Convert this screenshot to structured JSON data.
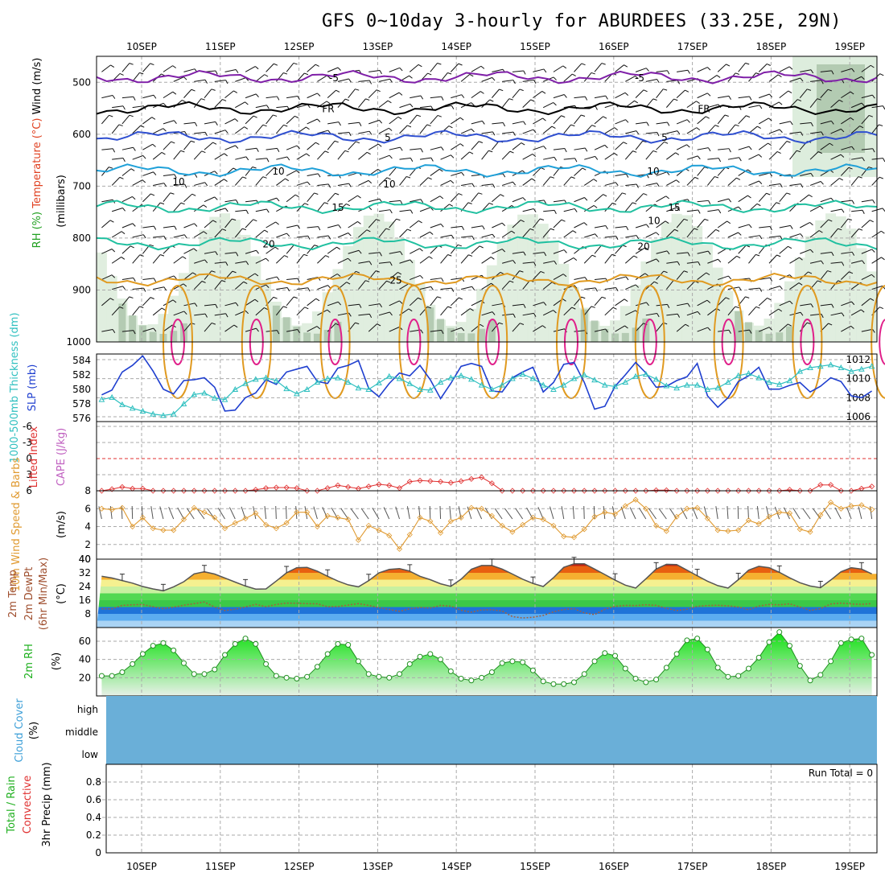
{
  "header": {
    "title": "GFS 0~10day 3-hourly for ABURDEES (33.25E, 29N)"
  },
  "colors": {
    "rh_fill": "#d5e8d4",
    "temp_purple": "#7f1fa8",
    "temp_blue": "#2f4fd0",
    "temp_cyan": "#1fa0d8",
    "temp_teal": "#20c0a0",
    "temp_orange": "#e09a20",
    "temp_magenta": "#e0208a",
    "slp": "#1f3fcf",
    "thickness": "#30c0c0",
    "lifted": "#e03030",
    "cape": "#c060c0",
    "wind10": "#e09a30",
    "temp2m": "#e86010",
    "rh2m": "#20d020",
    "cloud": "#6aafd8",
    "precip_total": "#20c020",
    "precip_conv": "#e03030"
  },
  "chart_data": [
    {
      "type": "line",
      "name": "upper",
      "ylabel_parts": [
        "RH (%)",
        "Temperature (°C)",
        "Wind (m/s)"
      ],
      "ylabel2": "(millibars)",
      "x": [
        "10SEP",
        "11SEP",
        "12SEP",
        "13SEP",
        "14SEP",
        "15SEP",
        "16SEP",
        "17SEP",
        "18SEP",
        "19SEP"
      ],
      "y_ticks": [
        1000,
        900,
        800,
        700,
        600,
        500
      ],
      "ylim": [
        1000,
        450
      ],
      "contour_labels": [
        "-5",
        "-5",
        "FR",
        "FR",
        "5",
        "5",
        "10",
        "10",
        "10",
        "10",
        "15",
        "15",
        "20",
        "20",
        "25",
        "10"
      ],
      "isotherms": [
        {
          "label": "-5",
          "level_mb": 490
        },
        {
          "label": "FR",
          "level_mb": 550
        },
        {
          "label": "5",
          "level_mb": 605
        },
        {
          "label": "10",
          "level_mb": 670
        },
        {
          "label": "15",
          "level_mb": 740
        },
        {
          "label": "20",
          "level_mb": 810
        },
        {
          "label": "25",
          "level_mb": 880
        }
      ]
    },
    {
      "type": "line",
      "name": "slp_thickness",
      "ylabel_left": "1000-500mb Thickness (dm)",
      "ylabel_right": "SLP (mb)",
      "y_ticks_left": [
        576,
        578,
        580,
        582,
        584
      ],
      "y_ticks_right": [
        1006,
        1008,
        1010,
        1012
      ],
      "slp": [
        1008.3,
        1008.8,
        1010.7,
        1011.4,
        1012.4,
        1010.8,
        1008.9,
        1008.4,
        1009.8,
        1009.9,
        1010.1,
        1009.1,
        1006.6,
        1006.7,
        1008.0,
        1008.5,
        1009.9,
        1009.4,
        1010.7,
        1011.0,
        1011.3,
        1009.7,
        1009.5,
        1011.1,
        1011.4,
        1011.9,
        1009.0,
        1008.1,
        1009.5,
        1010.6,
        1010.3,
        1011.4,
        1009.9,
        1007.9,
        1009.5,
        1011.3,
        1011.6,
        1011.3,
        1008.7,
        1008.6,
        1010.1,
        1010.7,
        1011.2,
        1008.6,
        1009.6,
        1011.5,
        1011.7,
        1009.6,
        1006.8,
        1007.1,
        1009.2,
        1010.4,
        1011.7,
        1010.6,
        1009.1,
        1009.2,
        1009.8,
        1010.2,
        1011.6,
        1008.2,
        1007.0,
        1008.0,
        1009.7,
        1010.3,
        1011.2,
        1008.9,
        1008.9,
        1009.3,
        1009.6,
        1008.6,
        1009.2,
        1010.1,
        1009.7,
        1008.2,
        1008.0,
        1008.7
      ],
      "thickness": [
        578.6,
        578.9,
        577.9,
        577.4,
        577.0,
        576.6,
        576.4,
        576.6,
        578.0,
        579.3,
        579.5,
        578.8,
        578.6,
        580.0,
        580.8,
        581.4,
        581.6,
        581.2,
        580.1,
        579.4,
        580.0,
        581.0,
        581.5,
        581.6,
        581.0,
        580.2,
        580.0,
        580.9,
        581.8,
        581.5,
        580.8,
        580.0,
        579.9,
        581.0,
        581.6,
        581.9,
        581.4,
        580.6,
        580.0,
        580.6,
        581.5,
        582.1,
        581.5,
        580.6,
        580.0,
        580.6,
        581.5,
        582.0,
        581.3,
        580.6,
        580.4,
        581.0,
        581.8,
        582.1,
        581.4,
        580.5,
        580.2,
        580.6,
        580.6,
        580.0,
        580.2,
        581.0,
        581.9,
        582.2,
        581.6,
        581.0,
        580.7,
        581.2,
        582.5,
        583.0,
        583.2,
        583.4,
        583.0,
        582.5,
        582.8,
        583.2
      ]
    },
    {
      "type": "line",
      "name": "stability",
      "ylabel_left": "Lifted Index",
      "ylabel_right": "CAPE (J/kg)",
      "y_ticks": [
        -6,
        -3,
        0,
        3,
        6
      ],
      "right_tick": "8",
      "lifted_index": [
        6.0,
        5.7,
        5.3,
        5.6,
        5.6,
        6.0,
        6.0,
        6.0,
        6.0,
        6.0,
        6.0,
        6.0,
        6.0,
        6.0,
        6.0,
        5.8,
        5.5,
        5.4,
        5.4,
        5.5,
        6.0,
        6.0,
        5.5,
        5.0,
        5.3,
        5.6,
        5.2,
        4.8,
        5.0,
        5.5,
        4.3,
        4.1,
        4.2,
        4.3,
        4.5,
        4.2,
        3.8,
        3.5,
        4.6,
        6.0,
        6.0,
        6.0,
        6.0,
        6.0,
        6.0,
        6.0,
        6.0,
        6.0,
        6.0,
        6.0,
        6.0,
        6.0,
        6.0,
        6.0,
        5.9,
        5.9,
        6.0,
        6.0,
        6.0,
        6.0,
        6.0,
        6.0,
        6.0,
        6.0,
        6.0,
        6.0,
        6.0,
        5.8,
        6.0,
        6.0,
        4.9,
        4.9,
        6.0,
        6.0,
        5.6,
        5.2
      ]
    },
    {
      "type": "line",
      "name": "wind10m",
      "ylabel_left": "10m Wind Speed & Barbs",
      "ylabel2": "(m/s)",
      "y_ticks": [
        2,
        4,
        6
      ],
      "speed": [
        6.0,
        5.9,
        6.1,
        4.0,
        5.0,
        3.8,
        3.6,
        3.6,
        4.8,
        6.1,
        5.6,
        5.0,
        3.8,
        4.4,
        4.9,
        5.5,
        4.2,
        3.8,
        4.4,
        5.6,
        5.6,
        4.0,
        5.2,
        5.0,
        4.8,
        2.5,
        4.1,
        3.6,
        3.0,
        1.5,
        3.1,
        5.0,
        4.6,
        3.3,
        4.6,
        5.0,
        6.1,
        6.0,
        5.2,
        4.1,
        3.4,
        4.2,
        5.0,
        4.8,
        4.1,
        2.9,
        2.8,
        3.7,
        5.1,
        5.6,
        5.4,
        6.3,
        7.0,
        6.0,
        4.1,
        3.5,
        5.1,
        6.0,
        6.1,
        4.9,
        3.6,
        3.5,
        3.6,
        4.7,
        4.3,
        5.1,
        5.6,
        5.5,
        3.7,
        3.4,
        5.3,
        6.7,
        6.0,
        6.3,
        6.4,
        5.9
      ]
    },
    {
      "type": "area",
      "name": "temp2m",
      "ylabel_left": "2m Temp 2m DewPt (6hr Min/Max)",
      "ylabel2": "(°C)",
      "y_ticks": [
        8,
        16,
        24,
        32,
        40
      ],
      "temp": [
        30.0,
        29.0,
        27.5,
        26.0,
        24.0,
        22.6,
        21.5,
        23.8,
        26.8,
        31.4,
        32.6,
        31.3,
        29.0,
        26.6,
        24.3,
        22.5,
        22.6,
        27.2,
        32.0,
        35.0,
        35.2,
        33.0,
        30.0,
        27.2,
        25.0,
        23.8,
        27.4,
        32.0,
        34.0,
        34.5,
        33.0,
        30.0,
        28.0,
        25.6,
        24.1,
        28.3,
        34.1,
        36.3,
        36.3,
        34.2,
        31.3,
        28.3,
        25.8,
        24.0,
        29.2,
        35.2,
        37.3,
        37.3,
        34.2,
        31.0,
        27.7,
        24.8,
        23.1,
        28.5,
        34.2,
        37.0,
        36.8,
        33.6,
        30.3,
        27.1,
        24.5,
        23.1,
        28.0,
        33.6,
        35.8,
        35.0,
        32.3,
        29.1,
        26.2,
        24.3,
        23.3,
        27.8,
        32.6,
        35.0,
        34.2,
        31.4
      ],
      "dewpt": [
        10.9,
        10.9,
        13.0,
        13.3,
        13.5,
        12.2,
        11.0,
        11.9,
        13.1,
        14.0,
        14.9,
        12.0,
        10.0,
        10.7,
        12.1,
        13.6,
        12.2,
        13.5,
        14.3,
        14.2,
        14.0,
        13.9,
        12.2,
        12.3,
        13.2,
        14.0,
        13.0,
        11.6,
        10.6,
        9.5,
        11.0,
        11.7,
        11.4,
        13.0,
        12.5,
        10.1,
        9.0,
        10.3,
        10.4,
        9.7,
        6.4,
        5.6,
        6.0,
        7.1,
        9.2,
        10.6,
        11.0,
        8.6,
        7.6,
        10.7,
        12.4,
        13.0,
        12.9,
        13.3,
        13.0,
        11.2,
        10.0,
        10.7,
        12.4,
        12.9,
        13.1,
        12.7,
        12.0,
        10.4,
        12.6,
        13.5,
        13.3,
        13.9,
        12.0,
        10.0,
        11.1,
        13.8,
        14.3,
        13.8,
        13.6,
        14.0
      ]
    },
    {
      "type": "area",
      "name": "rh2m",
      "ylabel_left": "2m RH",
      "ylabel2": "(%)",
      "y_ticks": [
        20,
        40,
        60
      ],
      "rh": [
        22,
        22,
        26,
        35,
        46,
        55,
        58,
        50,
        36,
        24,
        24,
        29,
        45,
        57,
        63,
        57,
        35,
        22,
        20,
        19,
        21,
        32,
        46,
        57,
        56,
        38,
        24,
        21,
        20,
        24,
        35,
        43,
        46,
        40,
        27,
        19,
        17,
        20,
        26,
        36,
        38,
        37,
        28,
        16,
        13,
        13,
        15,
        24,
        38,
        47,
        44,
        30,
        19,
        15,
        18,
        31,
        46,
        61,
        63,
        51,
        31,
        21,
        22,
        30,
        42,
        59,
        70,
        55,
        33,
        17,
        23,
        38,
        58,
        62,
        63,
        45
      ]
    },
    {
      "type": "heatmap",
      "name": "cloud",
      "ylabel_left": "Cloud Cover",
      "ylabel2": "(%)",
      "levels": [
        "high",
        "middle",
        "low"
      ]
    },
    {
      "type": "bar",
      "name": "precip",
      "ylabel_left": "Total / Rain",
      "ylabel_left2": "Convective",
      "ylabel_right": "3hr Precip (mm)",
      "y_ticks": [
        "0",
        "0.2",
        "0.4",
        "0.6",
        "0.8"
      ],
      "run_total": "Run Total = 0",
      "x_labels": [
        "10SEP",
        "11SEP",
        "12SEP",
        "13SEP",
        "14SEP",
        "15SEP",
        "16SEP",
        "17SEP",
        "18SEP",
        "19SEP"
      ]
    }
  ]
}
